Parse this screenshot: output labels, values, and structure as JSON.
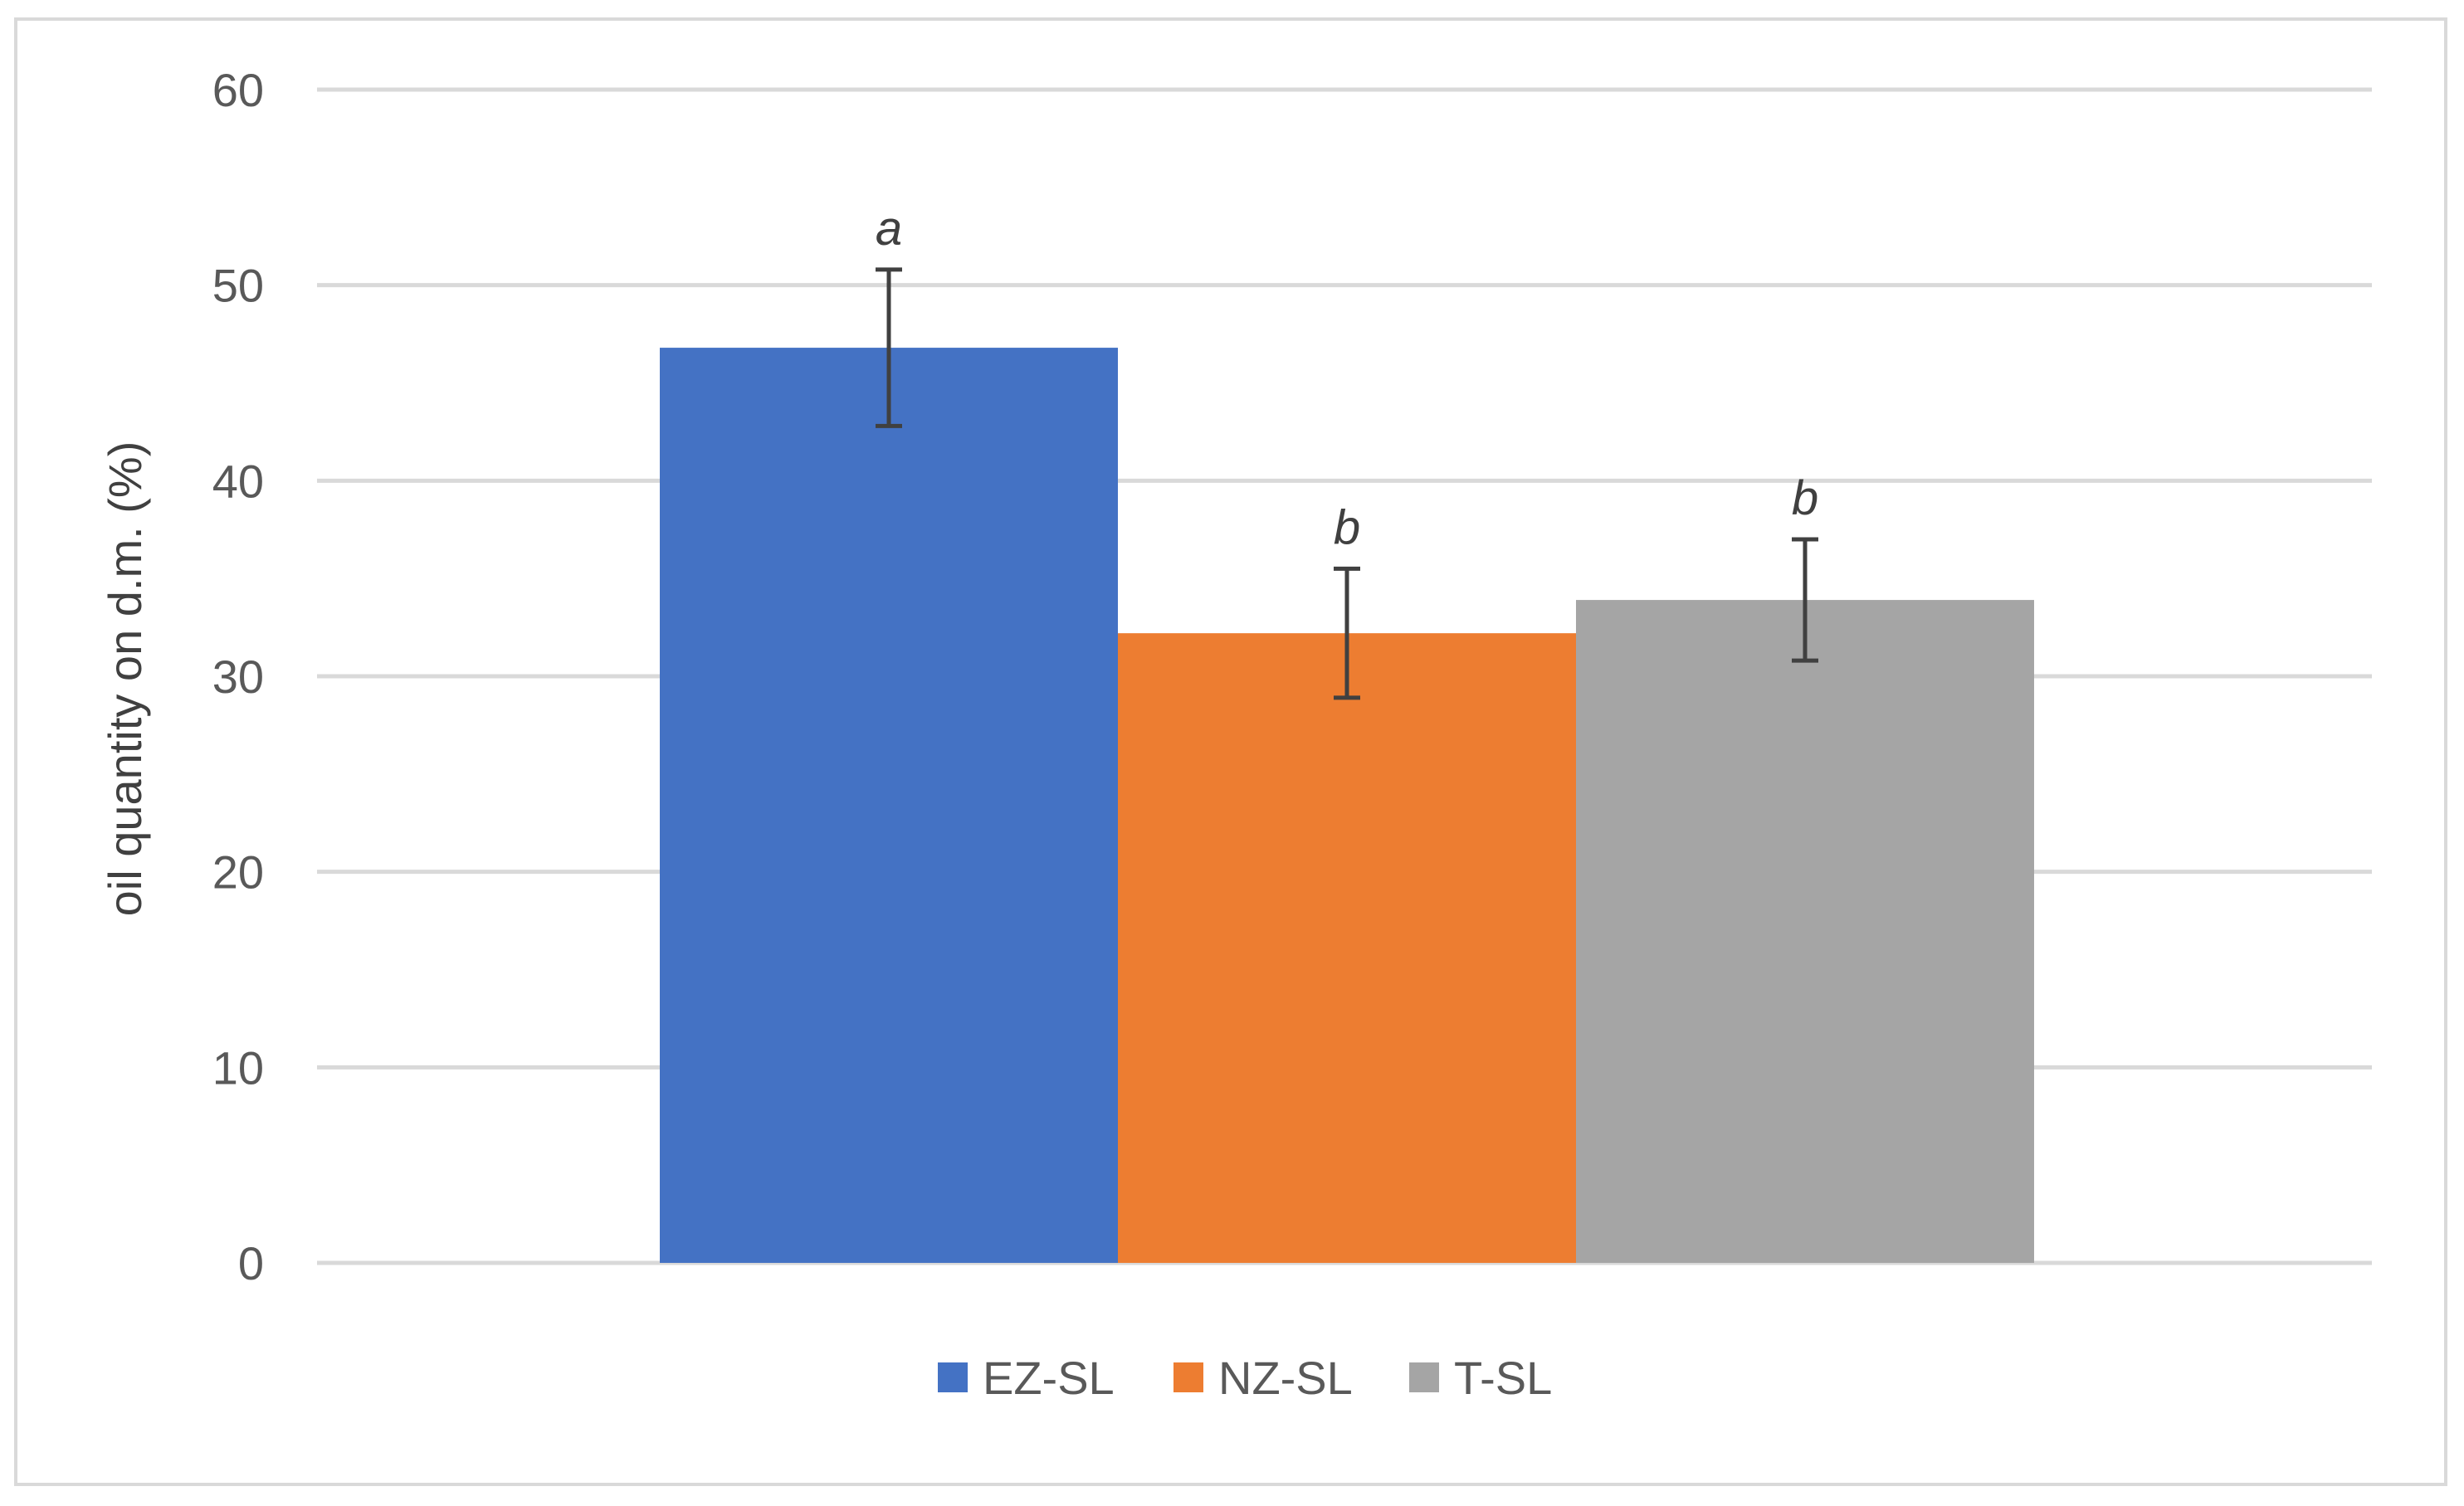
{
  "chart_data": {
    "type": "bar",
    "title": "",
    "xlabel": "",
    "ylabel": "oil quantity on d.m. (%)",
    "ylim": [
      0,
      60
    ],
    "yticks": [
      0,
      10,
      20,
      30,
      40,
      50,
      60
    ],
    "grid": true,
    "legend_position": "bottom",
    "series": [
      {
        "name": "EZ-SL",
        "value": 46.8,
        "error": 4.0,
        "significance": "a",
        "color": "#4472c4"
      },
      {
        "name": "NZ-SL",
        "value": 32.2,
        "error": 3.3,
        "significance": "b",
        "color": "#ed7d31"
      },
      {
        "name": "T-SL",
        "value": 33.9,
        "error": 3.1,
        "significance": "b",
        "color": "#a5a5a5"
      }
    ]
  }
}
